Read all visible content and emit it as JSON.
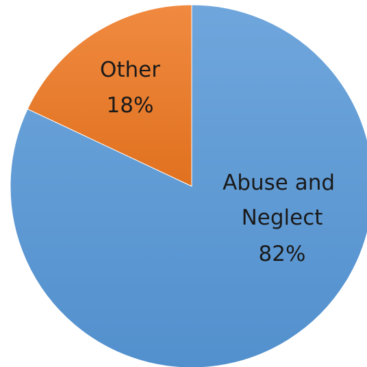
{
  "chart_data": {
    "type": "pie",
    "slices": [
      {
        "label_lines": [
          "Abuse and",
          "Neglect"
        ],
        "value_label": "82%",
        "value": 82,
        "color": "#5b9bd5"
      },
      {
        "label_lines": [
          "Other"
        ],
        "value_label": "18%",
        "value": 18,
        "color": "#ed7d31"
      }
    ],
    "start": "12 o'clock",
    "direction": "clockwise",
    "legend": "none",
    "data_labels": "inside"
  }
}
